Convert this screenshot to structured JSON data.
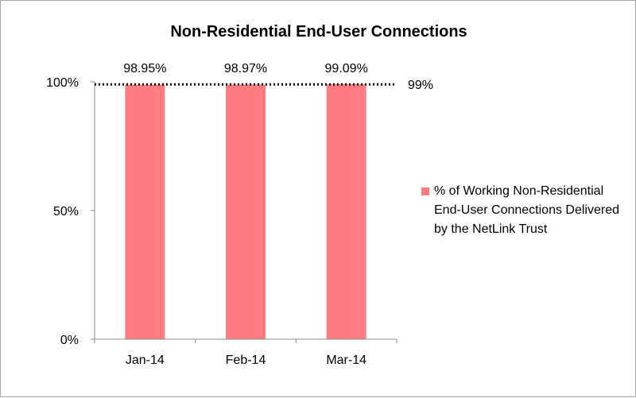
{
  "chart_data": {
    "type": "bar",
    "title": "Non-Residential End-User Connections",
    "categories": [
      "Jan-14",
      "Feb-14",
      "Mar-14"
    ],
    "series": [
      {
        "name": "% of Working Non-Residential End-User Connections Delivered by the NetLink Trust",
        "values": [
          98.95,
          98.97,
          99.09
        ],
        "data_labels": [
          "98.95%",
          "98.97%",
          "99.09%"
        ],
        "color": "#ff7c80"
      }
    ],
    "ylim": [
      0,
      100
    ],
    "y_ticks": [
      0,
      50,
      100
    ],
    "y_tick_labels": [
      "0%",
      "50%",
      "100%"
    ],
    "reference_line": {
      "value": 99,
      "label": "99%",
      "style": "dotted",
      "color": "#000000"
    },
    "gridlines": false,
    "legend_position": "right"
  }
}
